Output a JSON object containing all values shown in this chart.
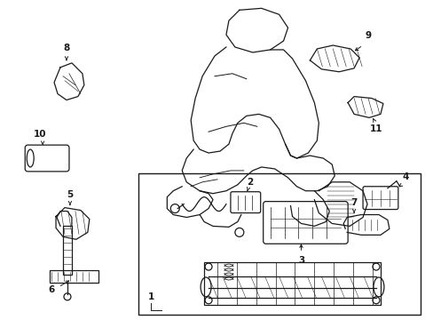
{
  "bg_color": "#ffffff",
  "line_color": "#1a1a1a",
  "fig_width": 4.89,
  "fig_height": 3.6,
  "dpi": 100,
  "gray": "#888888"
}
